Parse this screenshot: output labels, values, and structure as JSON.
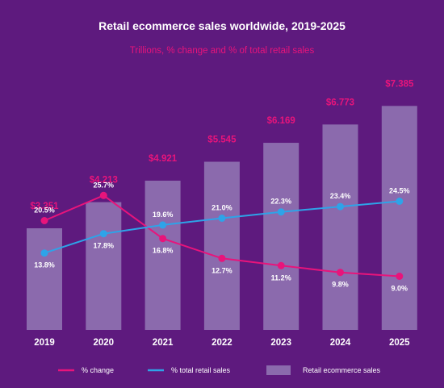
{
  "chart_data": {
    "type": "bar",
    "title": "Retail ecommerce sales worldwide, 2019-2025",
    "subtitle": "Trillions, % change and % of total retail sales",
    "categories": [
      "2019",
      "2020",
      "2021",
      "2022",
      "2023",
      "2024",
      "2025"
    ],
    "bar_series": {
      "name": "Retail ecommerce sales",
      "values": [
        3.351,
        4.213,
        4.921,
        5.545,
        6.169,
        6.773,
        7.385
      ],
      "labels": [
        "$3.351",
        "$4.213",
        "$4.921",
        "$5.545",
        "$6.169",
        "$6.773",
        "$7.385"
      ],
      "color": "#8b6aad"
    },
    "line_series": [
      {
        "name": "% change",
        "values": [
          20.5,
          25.7,
          16.8,
          12.7,
          11.2,
          9.8,
          9.0
        ],
        "labels": [
          "20.5%",
          "25.7%",
          "16.8%",
          "12.7%",
          "11.2%",
          "9.8%",
          "9.0%"
        ],
        "color": "#e8147b"
      },
      {
        "name": "% total retail sales",
        "values": [
          13.8,
          17.8,
          19.6,
          21.0,
          22.3,
          23.4,
          24.5
        ],
        "labels": [
          "13.8%",
          "17.8%",
          "19.6%",
          "21.0%",
          "22.3%",
          "23.4%",
          "24.5%"
        ],
        "color": "#2ea3e8"
      }
    ],
    "legend_position": "bottom",
    "grid": false
  },
  "colors": {
    "background": "#5e1a7e",
    "accent": "#e8147b",
    "text": "#ffffff"
  }
}
